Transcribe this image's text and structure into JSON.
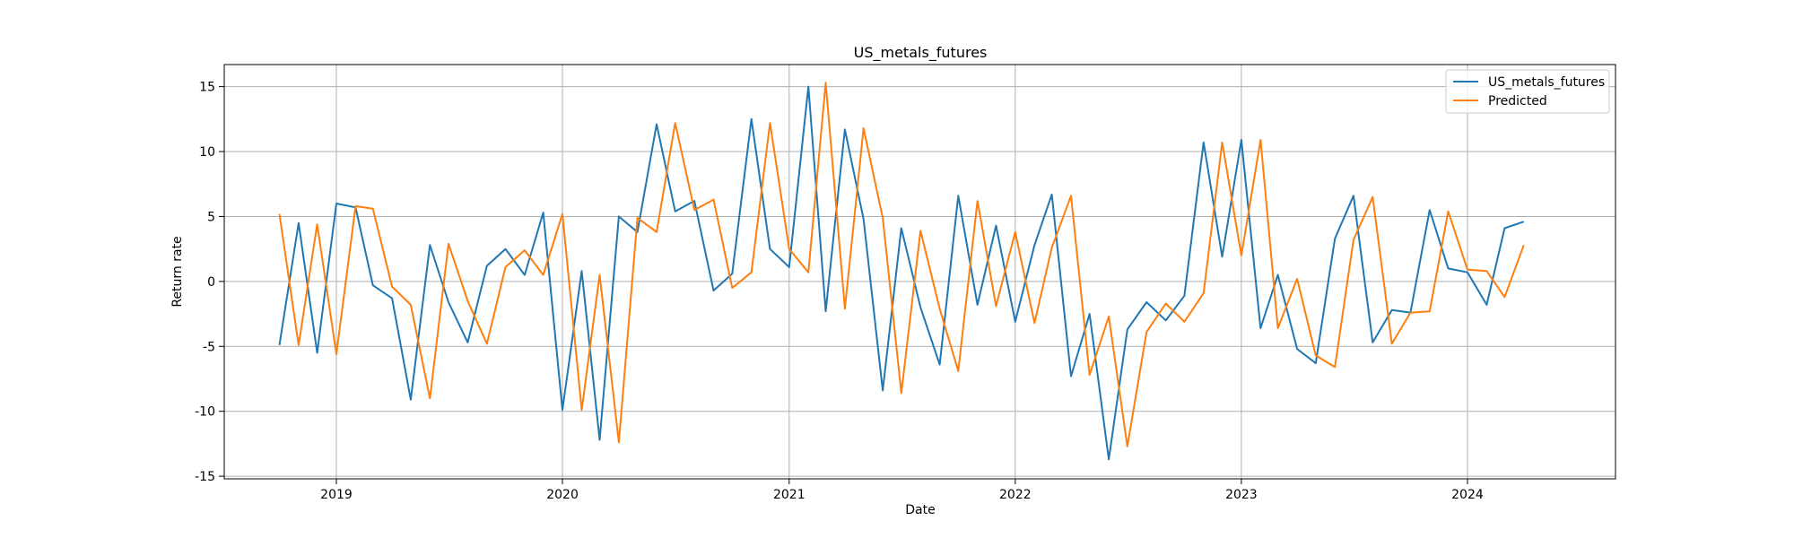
{
  "chart_data": {
    "type": "line",
    "title": "US_metals_futures",
    "xlabel": "Date",
    "ylabel": "Return rate",
    "x": [
      "2018-10",
      "2018-11",
      "2018-12",
      "2019-01",
      "2019-02",
      "2019-03",
      "2019-04",
      "2019-05",
      "2019-06",
      "2019-07",
      "2019-08",
      "2019-09",
      "2019-10",
      "2019-11",
      "2019-12",
      "2020-01",
      "2020-02",
      "2020-03",
      "2020-04",
      "2020-05",
      "2020-06",
      "2020-07",
      "2020-08",
      "2020-09",
      "2020-10",
      "2020-11",
      "2020-12",
      "2021-01",
      "2021-02",
      "2021-03",
      "2021-04",
      "2021-05",
      "2021-06",
      "2021-07",
      "2021-08",
      "2021-09",
      "2021-10",
      "2021-11",
      "2021-12",
      "2022-01",
      "2022-02",
      "2022-03",
      "2022-04",
      "2022-05",
      "2022-06",
      "2022-07",
      "2022-08",
      "2022-09",
      "2022-10",
      "2022-11",
      "2022-12",
      "2023-01",
      "2023-02",
      "2023-03",
      "2023-04",
      "2023-05",
      "2023-06",
      "2023-07",
      "2023-08",
      "2023-09",
      "2023-10",
      "2023-11",
      "2023-12",
      "2024-01",
      "2024-02",
      "2024-03",
      "2024-04"
    ],
    "series": [
      {
        "name": "US_metals_futures",
        "color": "#1f77b4",
        "values": [
          -4.9,
          4.5,
          -5.5,
          6.0,
          5.7,
          -0.3,
          -1.3,
          -9.1,
          2.8,
          -1.6,
          -4.7,
          1.2,
          2.5,
          0.5,
          5.3,
          -9.9,
          0.8,
          -12.2,
          5.0,
          3.8,
          12.1,
          5.4,
          6.2,
          -0.7,
          0.6,
          12.5,
          2.5,
          1.1,
          15.0,
          -2.3,
          11.7,
          4.8,
          -8.4,
          4.1,
          -2.0,
          -6.4,
          6.6,
          -1.8,
          4.3,
          -3.1,
          2.8,
          6.7,
          -7.3,
          -2.5,
          -13.7,
          -3.7,
          -1.6,
          -3.0,
          -1.1,
          10.7,
          1.9,
          10.9,
          -3.6,
          0.5,
          -5.2,
          -6.3,
          3.3,
          6.6,
          -4.7,
          -2.2,
          -2.4,
          5.5,
          1.0,
          0.7,
          -1.8,
          4.1,
          4.6
        ]
      },
      {
        "name": "Predicted",
        "color": "#ff7f0e",
        "values": [
          5.2,
          -4.9,
          4.4,
          -5.6,
          5.8,
          5.6,
          -0.4,
          -1.8,
          -9.0,
          2.9,
          -1.5,
          -4.8,
          1.1,
          2.4,
          0.5,
          5.2,
          -9.9,
          0.5,
          -12.4,
          4.9,
          3.8,
          12.2,
          5.5,
          6.3,
          -0.5,
          0.7,
          12.2,
          2.5,
          0.7,
          15.3,
          -2.1,
          11.8,
          4.9,
          -8.6,
          3.9,
          -2.1,
          -6.9,
          6.2,
          -1.9,
          3.8,
          -3.2,
          2.6,
          6.6,
          -7.2,
          -2.7,
          -12.7,
          -3.9,
          -1.7,
          -3.1,
          -0.9,
          10.7,
          2.0,
          10.9,
          -3.6,
          0.2,
          -5.7,
          -6.6,
          3.2,
          6.5,
          -4.8,
          -2.4,
          -2.3,
          5.4,
          0.9,
          0.8,
          -1.2,
          2.8
        ]
      }
    ],
    "xticks": [
      "2019",
      "2020",
      "2021",
      "2022",
      "2023",
      "2024"
    ],
    "yticks": [
      -15,
      -10,
      -5,
      0,
      5,
      10,
      15
    ],
    "xlim": [
      "2018-07-04",
      "2024-08-27"
    ],
    "ylim": [
      -15.2,
      16.7
    ],
    "grid": true,
    "legend": "top-right"
  }
}
